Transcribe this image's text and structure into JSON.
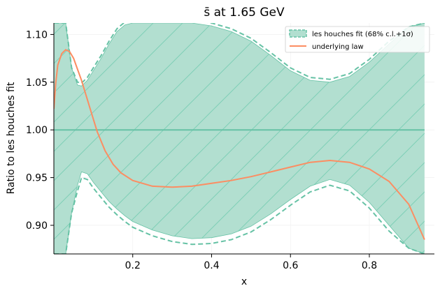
{
  "chart_data": {
    "type": "line",
    "title": "s̄ at 1.65 GeV",
    "xlabel": "x",
    "ylabel": "Ratio to les houches fit",
    "xlim": [
      0.0,
      0.965
    ],
    "ylim": [
      0.87,
      1.112
    ],
    "xticks": [
      "0.2",
      "0.4",
      "0.6",
      "0.8"
    ],
    "xtick_values": [
      0.2,
      0.4,
      0.6,
      0.8
    ],
    "yticks": [
      "0.90",
      "0.95",
      "1.00",
      "1.05",
      "1.10"
    ],
    "ytick_values": [
      0.9,
      0.95,
      1.0,
      1.05,
      1.1
    ],
    "legend_position": "top-right",
    "colors": {
      "band": "#66c2a5",
      "law": "#fc8d62"
    },
    "series": [
      {
        "name": "les houches fit (68% c.l.+1σ)",
        "kind": "band",
        "x": [
          0.0,
          0.02,
          0.03,
          0.045,
          0.06,
          0.07,
          0.085,
          0.1,
          0.12,
          0.14,
          0.16,
          0.18,
          0.2,
          0.25,
          0.3,
          0.35,
          0.4,
          0.45,
          0.5,
          0.55,
          0.6,
          0.65,
          0.7,
          0.75,
          0.8,
          0.85,
          0.9,
          0.94
        ],
        "upper": [
          1.112,
          1.112,
          1.112,
          1.065,
          1.047,
          1.046,
          1.052,
          1.062,
          1.075,
          1.09,
          1.103,
          1.11,
          1.112,
          1.112,
          1.112,
          1.112,
          1.109,
          1.103,
          1.093,
          1.078,
          1.062,
          1.052,
          1.05,
          1.056,
          1.071,
          1.09,
          1.108,
          1.112
        ],
        "lower": [
          0.87,
          0.87,
          0.87,
          0.913,
          0.942,
          0.956,
          0.954,
          0.945,
          0.935,
          0.925,
          0.917,
          0.91,
          0.904,
          0.895,
          0.889,
          0.886,
          0.887,
          0.891,
          0.899,
          0.912,
          0.927,
          0.941,
          0.948,
          0.942,
          0.924,
          0.9,
          0.876,
          0.87
        ],
        "central": 1.0
      },
      {
        "name": "underlying law",
        "kind": "line",
        "x": [
          0.0,
          0.005,
          0.01,
          0.02,
          0.03,
          0.04,
          0.05,
          0.07,
          0.09,
          0.11,
          0.13,
          0.15,
          0.17,
          0.2,
          0.25,
          0.3,
          0.35,
          0.4,
          0.45,
          0.5,
          0.55,
          0.6,
          0.65,
          0.7,
          0.75,
          0.8,
          0.85,
          0.9,
          0.94
        ],
        "y": [
          1.022,
          1.05,
          1.068,
          1.08,
          1.084,
          1.082,
          1.075,
          1.052,
          1.025,
          0.998,
          0.978,
          0.964,
          0.955,
          0.947,
          0.941,
          0.94,
          0.941,
          0.944,
          0.947,
          0.951,
          0.956,
          0.961,
          0.966,
          0.968,
          0.966,
          0.959,
          0.946,
          0.922,
          0.885
        ]
      }
    ]
  }
}
